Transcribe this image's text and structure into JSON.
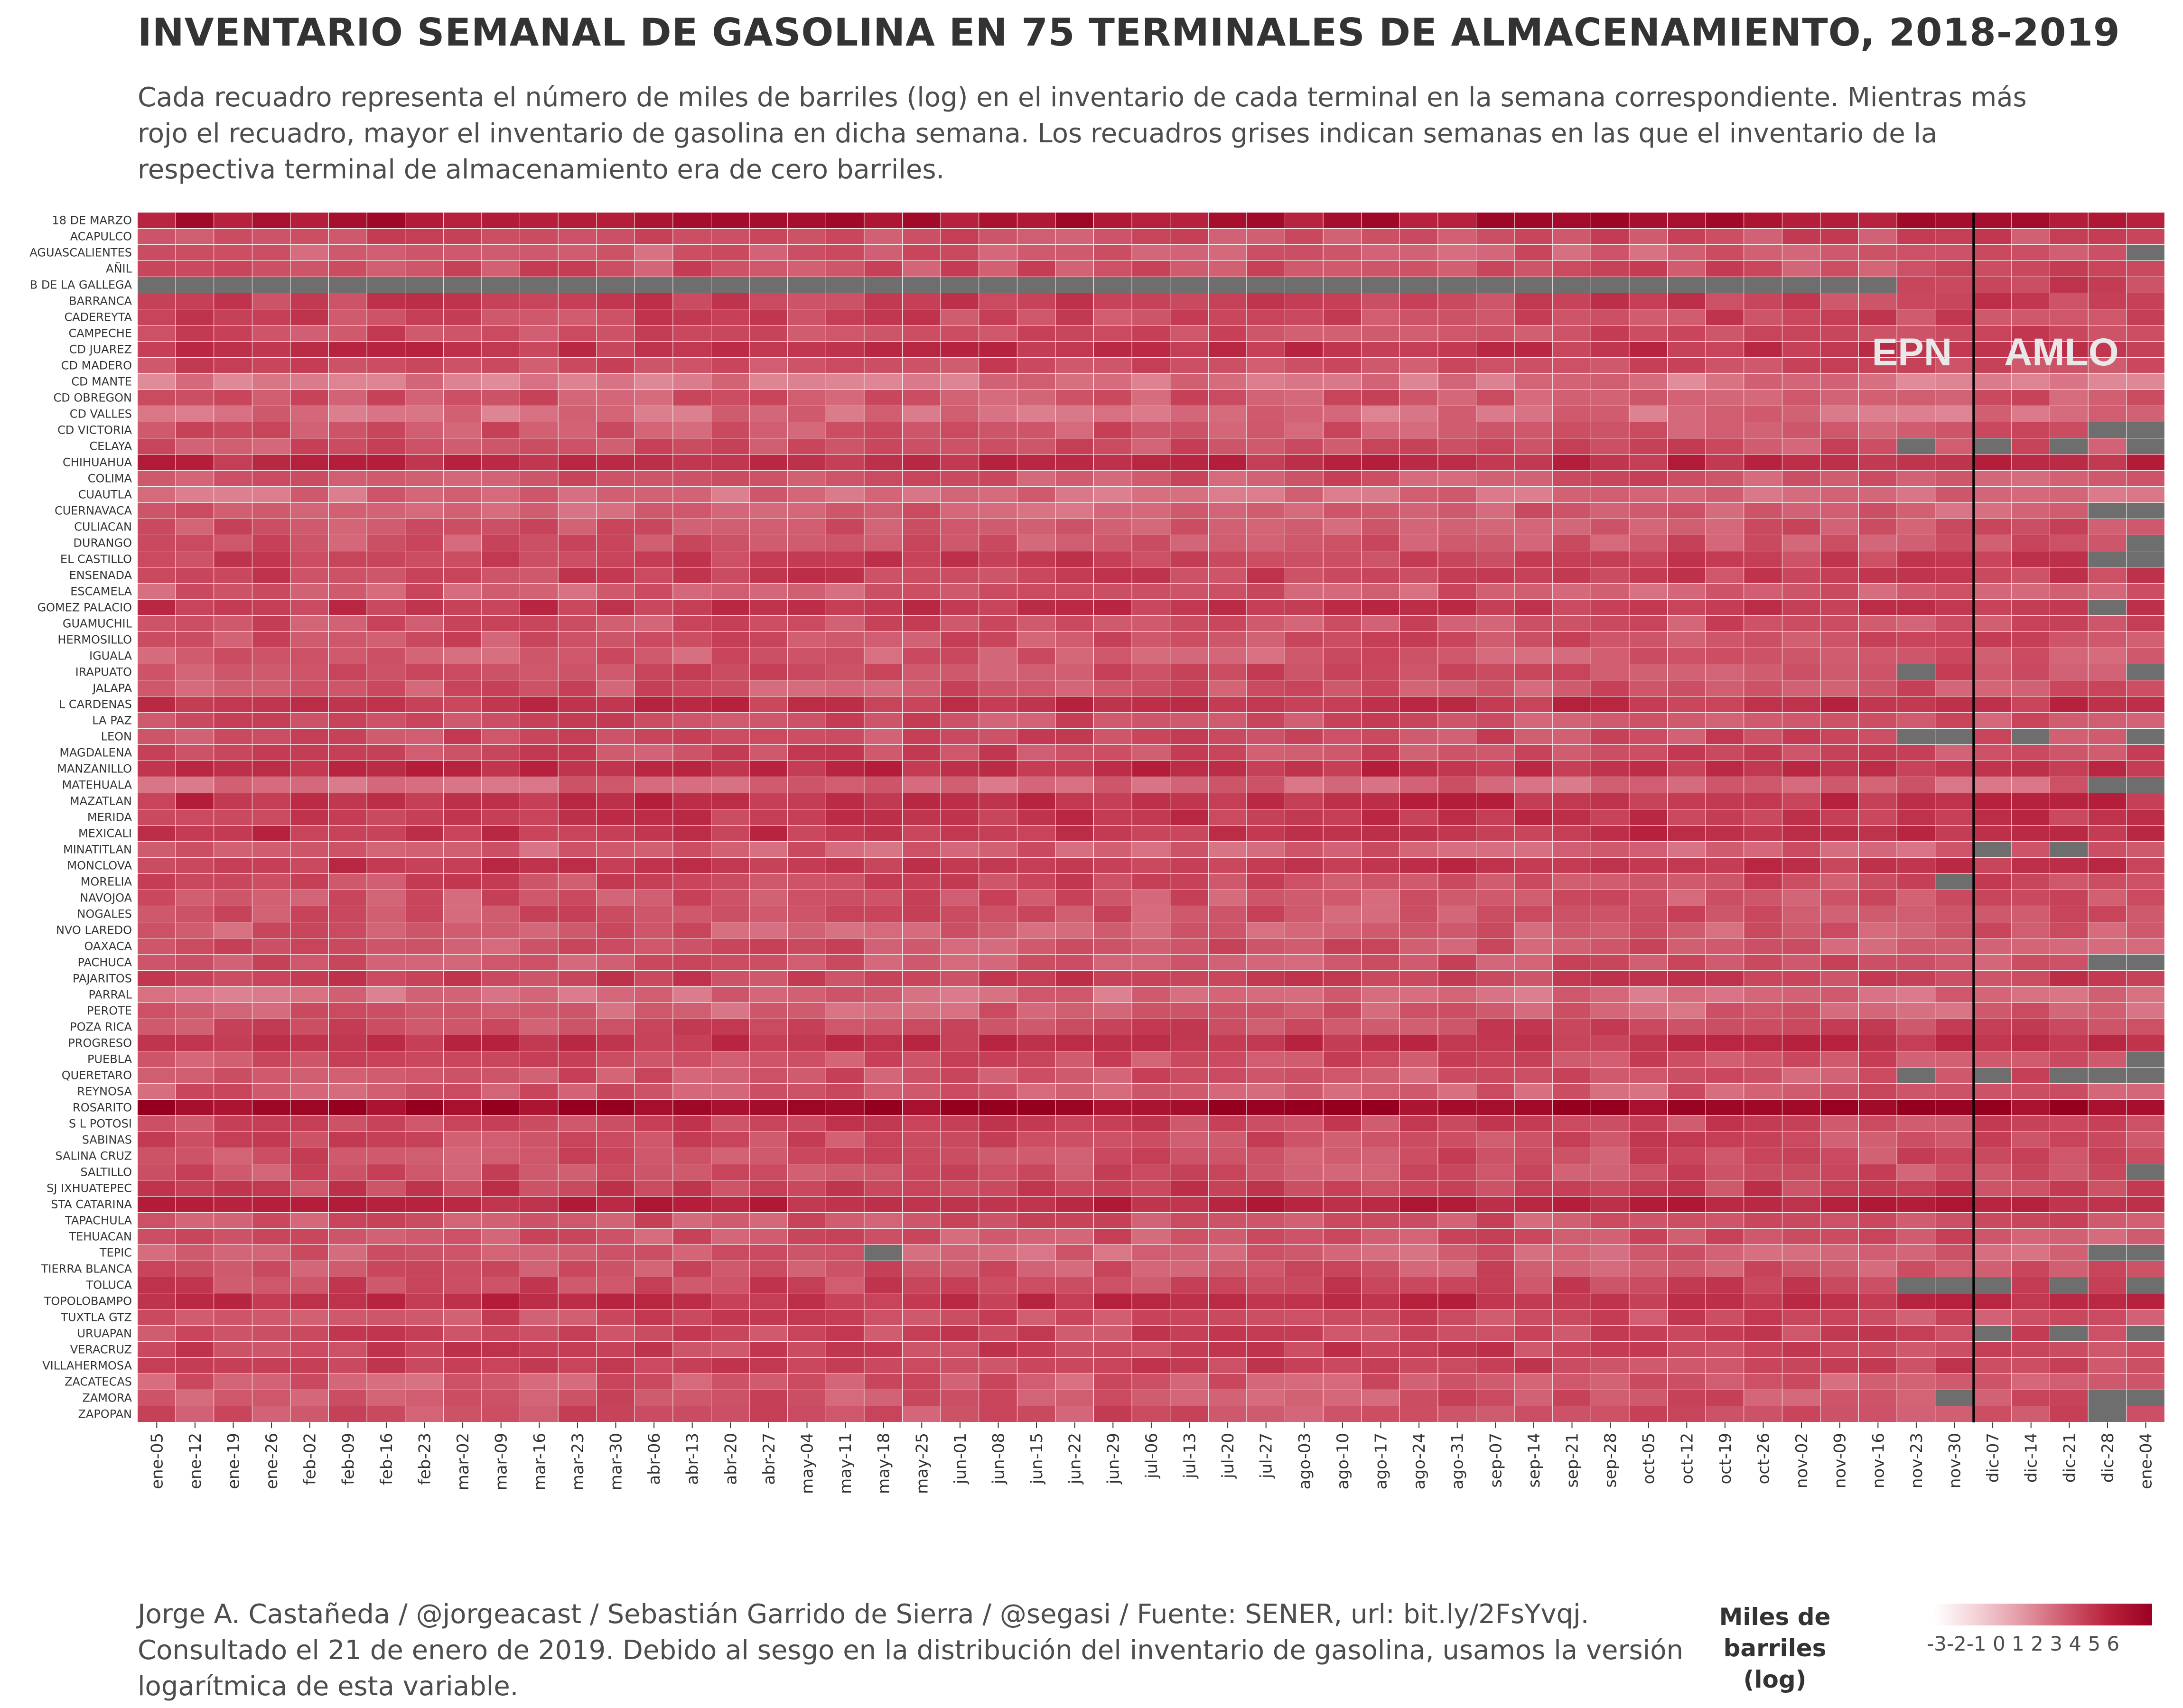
{
  "title": "INVENTARIO SEMANAL DE GASOLINA EN 75 TERMINALES DE ALMACENAMIENTO, 2018-2019",
  "subtitle": "Cada recuadro representa el número de miles de barriles (log) en el inventario de cada terminal en la semana correspondiente. Mientras más rojo el recuadro, mayor el inventario de gasolina en dicha semana. Los recuadros grises indican semanas en las que el inventario de la respectiva terminal de almacenamiento era de cero barriles.",
  "caption": "Jorge A. Castañeda / @jorgeacast / Sebastián Garrido de Sierra / @segasi / Fuente: SENER, url: bit.ly/2FsYvqj. Consultado el 21 de enero de 2019. Debido al sesgo en la distribución del inventario de gasolina, usamos la  versión logarítmica de esta variable.",
  "legend": {
    "title": "Miles de barriles (log)",
    "ticks": "-3-2-1 0 1 2 3 4 5 6"
  },
  "colors": {
    "low": "#ffffff",
    "mid": "#d9707f",
    "high": "#9b0022",
    "zero_inventory": "#6e6e6e",
    "divider": "#000000",
    "period_label": "#e8e8e8"
  },
  "chart_data": {
    "type": "heatmap",
    "x_label_weeks": [
      "ene-05",
      "ene-12",
      "ene-19",
      "ene-26",
      "feb-02",
      "feb-09",
      "feb-16",
      "feb-23",
      "mar-02",
      "mar-09",
      "mar-16",
      "mar-23",
      "mar-30",
      "abr-06",
      "abr-13",
      "abr-20",
      "abr-27",
      "may-04",
      "may-11",
      "may-18",
      "may-25",
      "jun-01",
      "jun-08",
      "jun-15",
      "jun-22",
      "jun-29",
      "jul-06",
      "jul-13",
      "jul-20",
      "jul-27",
      "ago-03",
      "ago-10",
      "ago-17",
      "ago-24",
      "ago-31",
      "sep-07",
      "sep-14",
      "sep-21",
      "sep-28",
      "oct-05",
      "oct-12",
      "oct-19",
      "oct-26",
      "nov-02",
      "nov-09",
      "nov-16",
      "nov-23",
      "nov-30",
      "dic-07",
      "dic-14",
      "dic-21",
      "dic-28",
      "ene-04"
    ],
    "terminals": [
      "18 DE MARZO",
      "ACAPULCO",
      "AGUASCALIENTES",
      "AÑIL",
      "B DE LA GALLEGA",
      "BARRANCA",
      "CADEREYTA",
      "CAMPECHE",
      "CD JUAREZ",
      "CD MADERO",
      "CD MANTE",
      "CD OBREGON",
      "CD VALLES",
      "CD VICTORIA",
      "CELAYA",
      "CHIHUAHUA",
      "COLIMA",
      "CUAUTLA",
      "CUERNAVACA",
      "CULIACAN",
      "DURANGO",
      "EL CASTILLO",
      "ENSENADA",
      "ESCAMELA",
      "GOMEZ PALACIO",
      "GUAMUCHIL",
      "HERMOSILLO",
      "IGUALA",
      "IRAPUATO",
      "JALAPA",
      "L CARDENAS",
      "LA PAZ",
      "LEON",
      "MAGDALENA",
      "MANZANILLO",
      "MATEHUALA",
      "MAZATLAN",
      "MERIDA",
      "MEXICALI",
      "MINATITLAN",
      "MONCLOVA",
      "MORELIA",
      "NAVOJOA",
      "NOGALES",
      "NVO LAREDO",
      "OAXACA",
      "PACHUCA",
      "PAJARITOS",
      "PARRAL",
      "PEROTE",
      "POZA RICA",
      "PROGRESO",
      "PUEBLA",
      "QUERETARO",
      "REYNOSA",
      "ROSARITO",
      "S L POTOSI",
      "SABINAS",
      "SALINA CRUZ",
      "SALTILLO",
      "SJ IXHUATEPEC",
      "STA CATARINA",
      "TAPACHULA",
      "TEHUACAN",
      "TEPIC",
      "TIERRA BLANCA",
      "TOLUCA",
      "TOPOLOBAMPO",
      "TUXTLA GTZ",
      "URUAPAN",
      "VERACRUZ",
      "VILLAHERMOSA",
      "ZACATECAS",
      "ZAMORA",
      "ZAPOPAN"
    ],
    "value_range": [
      -3,
      6
    ],
    "base_levels": [
      5.4,
      4.1,
      3.8,
      4.0,
      4.2,
      4.3,
      4.2,
      4.1,
      4.6,
      4.1,
      3.3,
      3.9,
      3.4,
      3.9,
      4.0,
      4.8,
      3.9,
      3.5,
      3.7,
      3.9,
      3.9,
      4.3,
      4.3,
      3.8,
      4.5,
      4.0,
      4.0,
      3.8,
      4.0,
      3.9,
      4.6,
      4.0,
      4.1,
      4.1,
      4.7,
      3.6,
      4.7,
      4.5,
      4.6,
      3.7,
      4.5,
      4.1,
      3.9,
      3.9,
      3.8,
      3.9,
      3.9,
      4.3,
      3.5,
      3.7,
      4.1,
      4.6,
      4.0,
      3.9,
      3.8,
      5.8,
      4.2,
      4.1,
      4.0,
      4.0,
      4.3,
      4.9,
      3.9,
      3.9,
      3.7,
      3.9,
      4.2,
      4.7,
      4.1,
      4.2,
      4.3,
      4.2,
      3.8,
      3.9,
      4.0
    ],
    "zero_inventory_cells": [
      [
        "AGUASCALIENTES",
        "ene-04"
      ],
      [
        "B DE LA GALLEGA",
        "ene-05"
      ],
      [
        "B DE LA GALLEGA",
        "ene-12"
      ],
      [
        "B DE LA GALLEGA",
        "ene-19"
      ],
      [
        "B DE LA GALLEGA",
        "ene-26"
      ],
      [
        "B DE LA GALLEGA",
        "feb-02"
      ],
      [
        "B DE LA GALLEGA",
        "feb-09"
      ],
      [
        "B DE LA GALLEGA",
        "feb-16"
      ],
      [
        "B DE LA GALLEGA",
        "feb-23"
      ],
      [
        "B DE LA GALLEGA",
        "mar-02"
      ],
      [
        "B DE LA GALLEGA",
        "mar-09"
      ],
      [
        "B DE LA GALLEGA",
        "mar-16"
      ],
      [
        "B DE LA GALLEGA",
        "mar-23"
      ],
      [
        "B DE LA GALLEGA",
        "mar-30"
      ],
      [
        "B DE LA GALLEGA",
        "abr-06"
      ],
      [
        "B DE LA GALLEGA",
        "abr-13"
      ],
      [
        "B DE LA GALLEGA",
        "abr-20"
      ],
      [
        "B DE LA GALLEGA",
        "abr-27"
      ],
      [
        "B DE LA GALLEGA",
        "may-04"
      ],
      [
        "B DE LA GALLEGA",
        "may-11"
      ],
      [
        "B DE LA GALLEGA",
        "may-18"
      ],
      [
        "B DE LA GALLEGA",
        "may-25"
      ],
      [
        "B DE LA GALLEGA",
        "jun-01"
      ],
      [
        "B DE LA GALLEGA",
        "jun-08"
      ],
      [
        "B DE LA GALLEGA",
        "jun-15"
      ],
      [
        "B DE LA GALLEGA",
        "jun-22"
      ],
      [
        "B DE LA GALLEGA",
        "jun-29"
      ],
      [
        "B DE LA GALLEGA",
        "jul-06"
      ],
      [
        "B DE LA GALLEGA",
        "jul-13"
      ],
      [
        "B DE LA GALLEGA",
        "jul-20"
      ],
      [
        "B DE LA GALLEGA",
        "jul-27"
      ],
      [
        "B DE LA GALLEGA",
        "ago-03"
      ],
      [
        "B DE LA GALLEGA",
        "ago-10"
      ],
      [
        "B DE LA GALLEGA",
        "ago-17"
      ],
      [
        "B DE LA GALLEGA",
        "ago-24"
      ],
      [
        "B DE LA GALLEGA",
        "ago-31"
      ],
      [
        "B DE LA GALLEGA",
        "sep-07"
      ],
      [
        "B DE LA GALLEGA",
        "sep-14"
      ],
      [
        "B DE LA GALLEGA",
        "sep-21"
      ],
      [
        "B DE LA GALLEGA",
        "sep-28"
      ],
      [
        "B DE LA GALLEGA",
        "oct-05"
      ],
      [
        "B DE LA GALLEGA",
        "oct-12"
      ],
      [
        "B DE LA GALLEGA",
        "oct-19"
      ],
      [
        "B DE LA GALLEGA",
        "oct-26"
      ],
      [
        "B DE LA GALLEGA",
        "nov-02"
      ],
      [
        "B DE LA GALLEGA",
        "nov-09"
      ],
      [
        "B DE LA GALLEGA",
        "nov-16"
      ],
      [
        "CD VICTORIA",
        "dic-28"
      ],
      [
        "CD VICTORIA",
        "ene-04"
      ],
      [
        "CELAYA",
        "nov-23"
      ],
      [
        "CELAYA",
        "dic-07"
      ],
      [
        "CELAYA",
        "dic-21"
      ],
      [
        "CELAYA",
        "ene-04"
      ],
      [
        "CUERNAVACA",
        "dic-28"
      ],
      [
        "CUERNAVACA",
        "ene-04"
      ],
      [
        "DURANGO",
        "ene-04"
      ],
      [
        "EL CASTILLO",
        "dic-28"
      ],
      [
        "EL CASTILLO",
        "ene-04"
      ],
      [
        "GOMEZ PALACIO",
        "dic-28"
      ],
      [
        "IRAPUATO",
        "nov-23"
      ],
      [
        "IRAPUATO",
        "ene-04"
      ],
      [
        "LEON",
        "nov-23"
      ],
      [
        "LEON",
        "nov-30"
      ],
      [
        "LEON",
        "dic-14"
      ],
      [
        "LEON",
        "ene-04"
      ],
      [
        "MATEHUALA",
        "dic-28"
      ],
      [
        "MATEHUALA",
        "ene-04"
      ],
      [
        "MINATITLAN",
        "dic-07"
      ],
      [
        "MINATITLAN",
        "dic-21"
      ],
      [
        "MORELIA",
        "nov-30"
      ],
      [
        "PACHUCA",
        "dic-28"
      ],
      [
        "PACHUCA",
        "ene-04"
      ],
      [
        "PUEBLA",
        "ene-04"
      ],
      [
        "QUERETARO",
        "nov-23"
      ],
      [
        "QUERETARO",
        "dic-07"
      ],
      [
        "QUERETARO",
        "dic-21"
      ],
      [
        "QUERETARO",
        "dic-28"
      ],
      [
        "QUERETARO",
        "ene-04"
      ],
      [
        "SALTILLO",
        "ene-04"
      ],
      [
        "TEPIC",
        "may-18"
      ],
      [
        "TEPIC",
        "dic-28"
      ],
      [
        "TEPIC",
        "ene-04"
      ],
      [
        "TOLUCA",
        "nov-23"
      ],
      [
        "TOLUCA",
        "nov-30"
      ],
      [
        "TOLUCA",
        "dic-07"
      ],
      [
        "TOLUCA",
        "dic-21"
      ],
      [
        "TOLUCA",
        "ene-04"
      ],
      [
        "URUAPAN",
        "dic-07"
      ],
      [
        "URUAPAN",
        "dic-21"
      ],
      [
        "URUAPAN",
        "ene-04"
      ],
      [
        "ZAMORA",
        "nov-30"
      ],
      [
        "ZAMORA",
        "dic-28"
      ],
      [
        "ZAMORA",
        "ene-04"
      ],
      [
        "ZAPOPAN",
        "dic-28"
      ]
    ],
    "divider_after_week": "nov-30",
    "period_labels": [
      "EPN",
      "AMLO"
    ],
    "grid": false,
    "legend_position": "bottom-right"
  }
}
